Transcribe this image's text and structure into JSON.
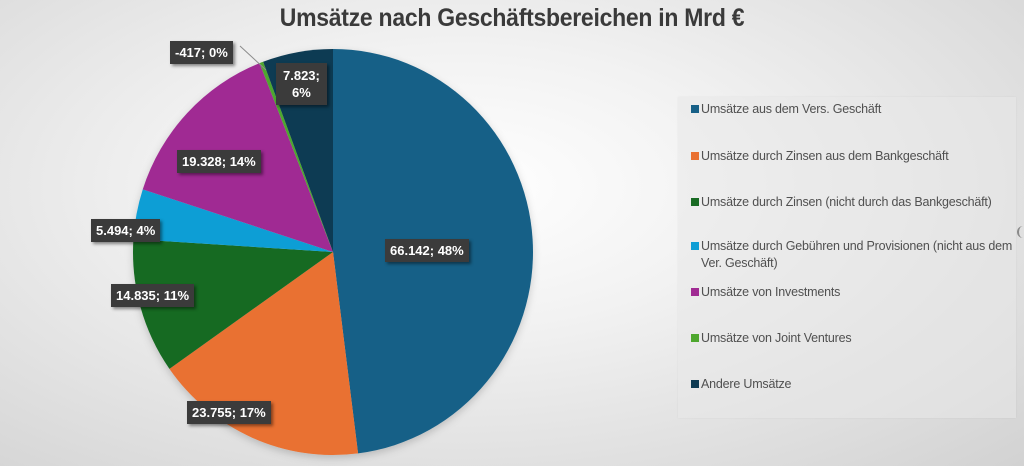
{
  "chart_data": {
    "type": "pie",
    "title": "Umsätze nach Geschäftsbereichen in Mrd €",
    "unit": "Mrd €",
    "legend_position": "right",
    "slices": [
      {
        "name": "Umsätze aus dem Vers. Geschäft",
        "value": 66.142,
        "percent": 48,
        "label": "66.142; 48%",
        "color": "#176087"
      },
      {
        "name": "Umsätze durch Zinsen aus dem Bankgeschäft",
        "value": 23.755,
        "percent": 17,
        "label": "23.755; 17%",
        "color": "#e97132"
      },
      {
        "name": "Umsätze durch Zinsen (nicht durch das Bankgeschäft)",
        "value": 14.835,
        "percent": 11,
        "label": "14.835; 11%",
        "color": "#196b24"
      },
      {
        "name": "Umsätze durch Gebühren und Provisionen (nicht aus dem Ver. Geschäft)",
        "value": 5.494,
        "percent": 4,
        "label": "5.494; 4%",
        "color": "#0f9ed5"
      },
      {
        "name": "Umsätze von Investments",
        "value": 19.328,
        "percent": 14,
        "label": "19.328; 14%",
        "color": "#a02b93"
      },
      {
        "name": "Umsätze von Joint Ventures",
        "value": -417,
        "percent": 0,
        "label": "-417; 0%",
        "color": "#4ea72e"
      },
      {
        "name": "Andere Umsätze",
        "value": 7.823,
        "percent": 6,
        "label": "7.823; 6%",
        "color": "#0e3a52"
      }
    ]
  },
  "legend": {
    "items": [
      "Umsätze aus dem Vers. Geschäft",
      "Umsätze durch Zinsen aus dem Bankgeschäft",
      "Umsätze durch Zinsen (nicht durch das Bankgeschäft)",
      "Umsätze durch Gebühren und Provisionen (nicht aus dem Ver. Geschäft)",
      "Umsätze von Investments",
      "Umsätze von Joint Ventures",
      "Andere Umsätze"
    ]
  },
  "labels": {
    "l0": "66.142; 48%",
    "l1": "23.755; 17%",
    "l2": "14.835; 11%",
    "l3": "5.494; 4%",
    "l4": "19.328; 14%",
    "l5": "-417; 0%",
    "l6a": "7.823;",
    "l6b": "6%"
  }
}
